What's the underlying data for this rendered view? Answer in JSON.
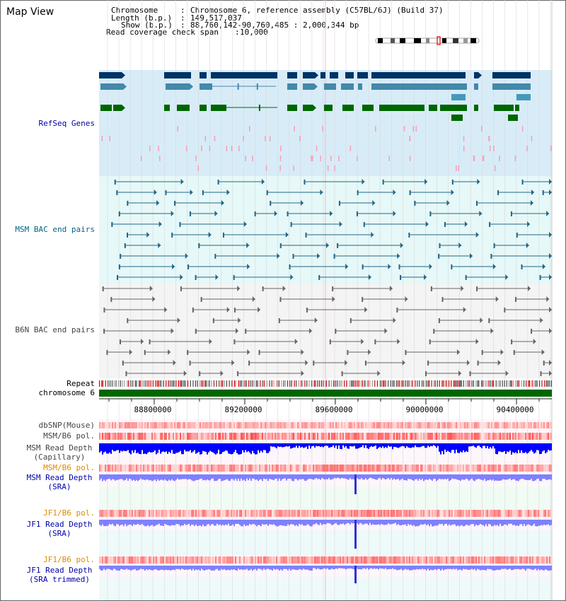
{
  "page": {
    "title": "Map View"
  },
  "header": {
    "chromosome_key": "Chromosome",
    "chromosome_value": "Chromosome 6, reference assembly (C57BL/6J) (Build 37)",
    "length_key": "Length (b.p.)",
    "length_value": "149,517,037",
    "show_key": "Show (b.p.)",
    "show_value": "88,760,142-90,760,485 : 2,000,344 bp",
    "coverage_key": "Read coverage check span",
    "coverage_value": "10,000"
  },
  "tracks": {
    "refseq": {
      "label": "RefSeq Genes",
      "color": "#0000aa"
    },
    "msm_bac": {
      "label": "MSM BAC end pairs",
      "color": "#006688"
    },
    "b6n_bac": {
      "label": "B6N BAC end pairs",
      "color": "#444444"
    },
    "repeat": {
      "label": "Repeat"
    },
    "chromosome": {
      "label": "chromosome 6"
    },
    "dbsnp": {
      "label": "dbSNP(Mouse)"
    },
    "msm_b6_pol_1": {
      "label": "MSM/B6 pol."
    },
    "msm_depth_cap": {
      "line1": "MSM Read Depth",
      "line2": "(Capillary)"
    },
    "msm_b6_pol_2": {
      "label": "MSM/B6 pol."
    },
    "msm_depth_sra": {
      "line1": "MSM Read Depth",
      "line2": "(SRA)"
    },
    "jf1_b6_pol_1": {
      "label": "JF1/B6 pol."
    },
    "jf1_depth_sra": {
      "line1": "JF1 Read Depth",
      "line2": "(SRA)"
    },
    "jf1_b6_pol_2": {
      "label": "JF1/B6 pol."
    },
    "jf1_depth_trim": {
      "line1": "JF1 Read Depth",
      "line2": "(SRA trimmed)"
    }
  },
  "ruler": {
    "ticks": [
      "88800000",
      "89200000",
      "89600000",
      "90000000",
      "90400000"
    ]
  },
  "colors": {
    "refseq_bg": "#d8ecf8",
    "msm_bg": "#e6f8f8",
    "b6n_bg": "#f4f4f4",
    "chromosome": "#006600",
    "depth_cap": "#0000ff",
    "depth_sra": "#8080ff",
    "pol": "#ff4040"
  }
}
